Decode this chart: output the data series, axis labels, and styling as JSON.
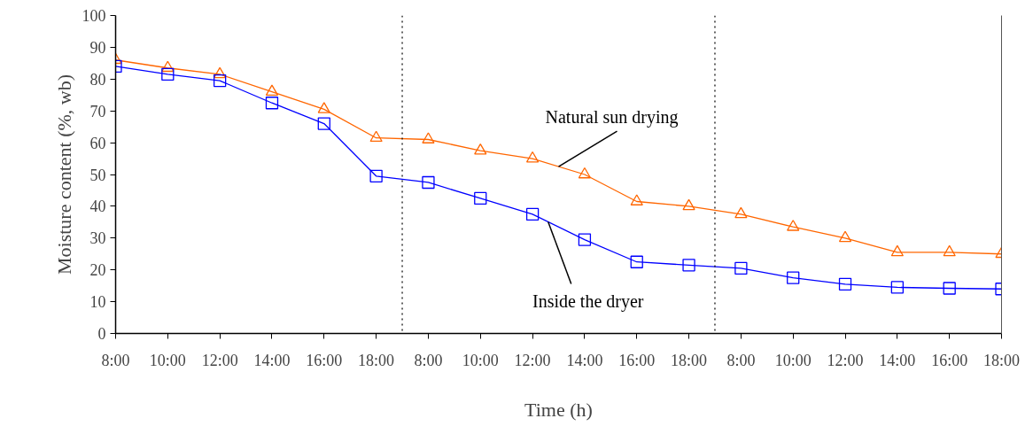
{
  "chart_data": {
    "type": "line",
    "xlabel": "Time (h)",
    "ylabel": "Moisture content (%, wb)",
    "categories": [
      "8:00",
      "10:00",
      "12:00",
      "14:00",
      "16:00",
      "18:00",
      "8:00",
      "10:00",
      "12:00",
      "14:00",
      "16:00",
      "18:00",
      "8:00",
      "10:00",
      "12:00",
      "14:00",
      "16:00",
      "18:00"
    ],
    "ylim": [
      0,
      100
    ],
    "yticks": [
      0,
      10,
      20,
      30,
      40,
      50,
      60,
      70,
      80,
      90,
      100
    ],
    "grid": false,
    "line_style": "solid",
    "series": [
      {
        "name": "Natural sun drying",
        "color": "#ff6600",
        "marker": "triangle",
        "values": [
          86,
          83.5,
          81.5,
          76,
          70.5,
          61.5,
          61,
          57.5,
          55,
          50,
          41.5,
          40,
          37.5,
          33.5,
          30,
          25.5,
          25.5,
          25
        ]
      },
      {
        "name": "Inside the dryer",
        "color": "#0000ff",
        "marker": "square",
        "values": [
          84,
          81.5,
          79.5,
          72.5,
          66,
          49.5,
          47.5,
          42.5,
          37.5,
          29.5,
          22.5,
          21.5,
          20.5,
          17.5,
          15.5,
          14.5,
          14.2,
          14
        ]
      }
    ]
  }
}
